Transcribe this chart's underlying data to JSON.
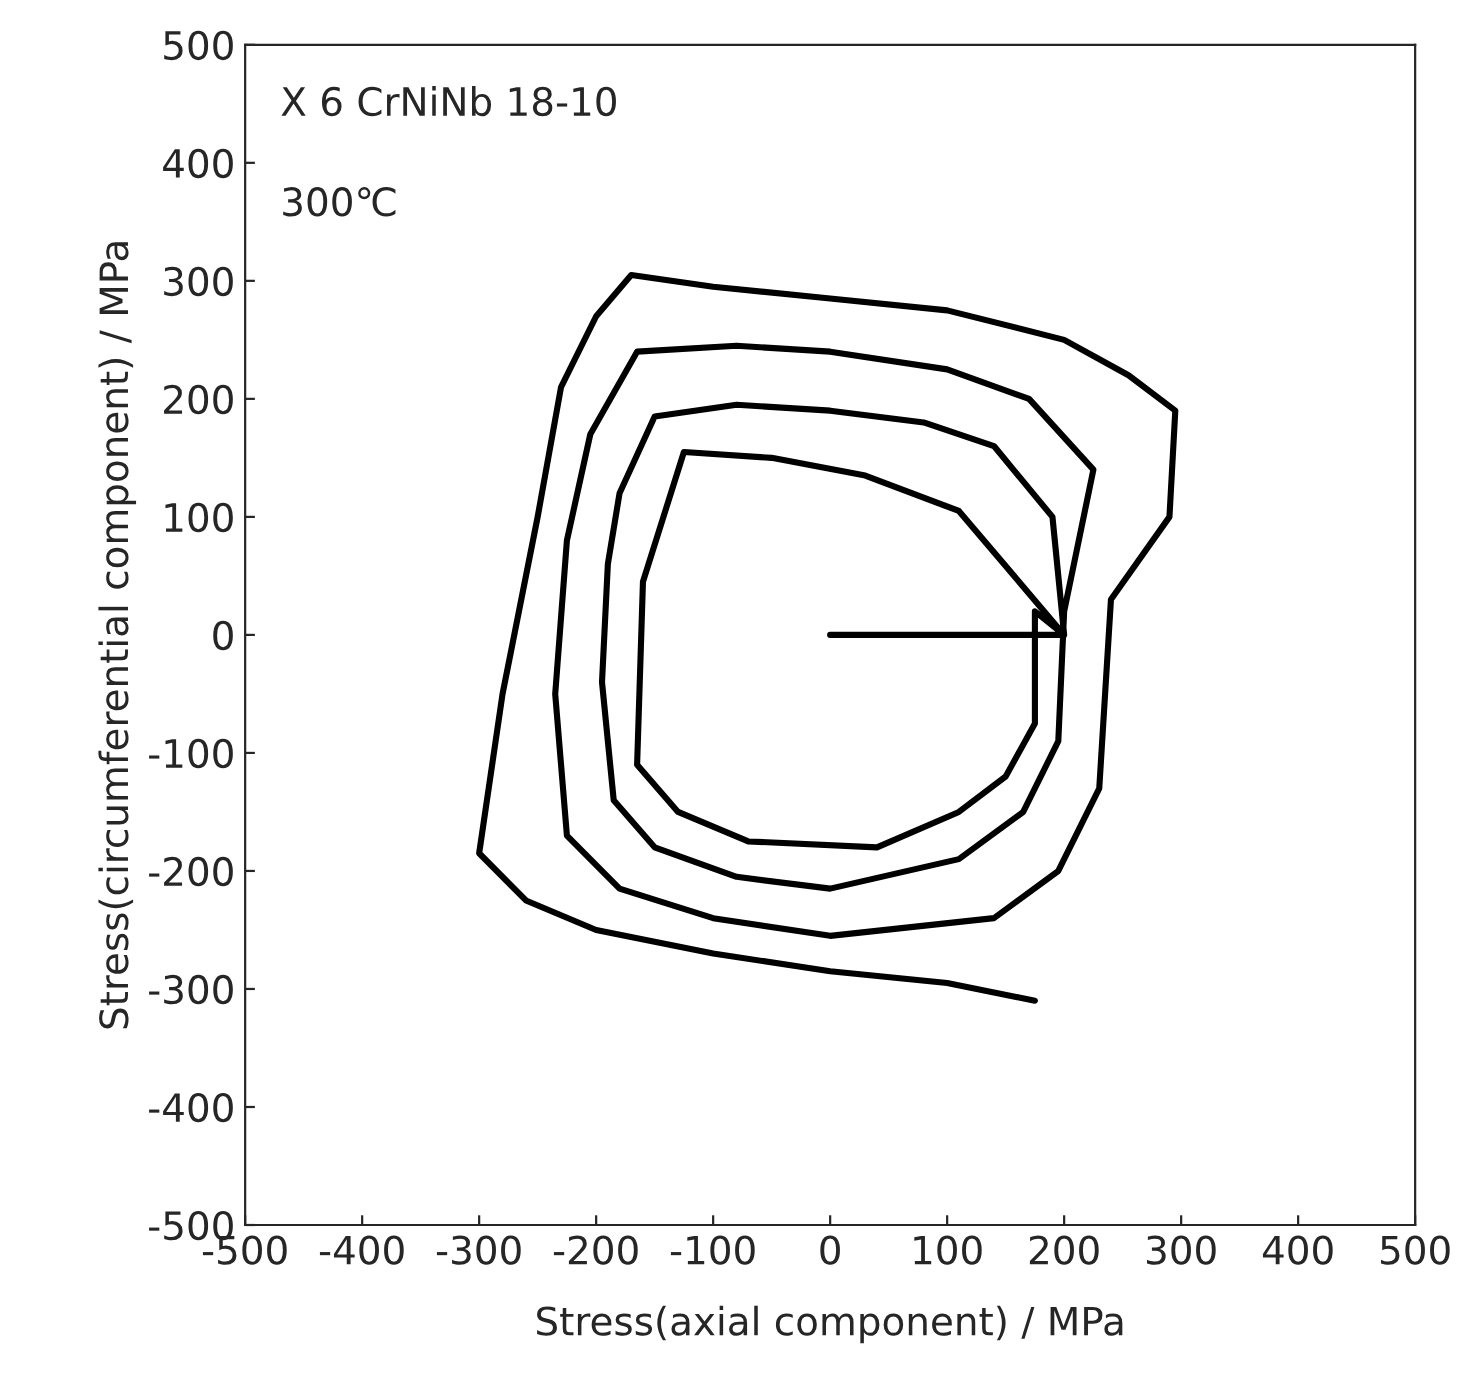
{
  "chart_data": {
    "type": "line",
    "xlabel": "Stress(axial component) / MPa",
    "ylabel": "Stress(circumferential component) / MPa",
    "annotations": [
      "X 6 CrNiNb 18-10",
      "300℃"
    ],
    "xlim": [
      -500,
      500
    ],
    "ylim": [
      -500,
      500
    ],
    "xticks": [
      -500,
      -400,
      -300,
      -200,
      -100,
      0,
      100,
      200,
      300,
      400,
      500
    ],
    "yticks": [
      -500,
      -400,
      -300,
      -200,
      -100,
      0,
      100,
      200,
      300,
      400,
      500
    ],
    "grid": false,
    "marker": "none",
    "line_style": "solid",
    "series": [
      {
        "color": "#000000",
        "x": [
          0,
          200,
          110,
          30,
          -50,
          -125,
          -160,
          -165,
          -130,
          -70,
          40,
          110,
          150,
          175,
          175,
          200,
          190,
          140,
          80,
          0,
          -80,
          -150,
          -180,
          -190,
          -195,
          -185,
          -150,
          -80,
          0,
          110,
          165,
          195,
          200,
          225,
          170,
          100,
          0,
          -80,
          -165,
          -205,
          -225,
          -235,
          -225,
          -180,
          -100,
          0,
          140,
          195,
          230,
          240,
          290,
          295,
          255,
          200,
          100,
          0,
          -100,
          -170,
          -200,
          -230,
          -250,
          -280,
          -300,
          -260,
          -200,
          -100,
          0,
          100,
          175
        ],
        "values": [
          0,
          0,
          105,
          135,
          150,
          155,
          45,
          -110,
          -150,
          -175,
          -180,
          -150,
          -120,
          -75,
          20,
          0,
          100,
          160,
          180,
          190,
          195,
          185,
          120,
          60,
          -40,
          -140,
          -180,
          -205,
          -215,
          -190,
          -150,
          -90,
          20,
          140,
          200,
          225,
          240,
          245,
          240,
          170,
          80,
          -50,
          -170,
          -215,
          -240,
          -255,
          -240,
          -200,
          -130,
          30,
          100,
          190,
          220,
          250,
          275,
          285,
          295,
          305,
          270,
          210,
          100,
          -50,
          -185,
          -225,
          -250,
          -270,
          -285,
          -295,
          -310
        ]
      }
    ]
  }
}
